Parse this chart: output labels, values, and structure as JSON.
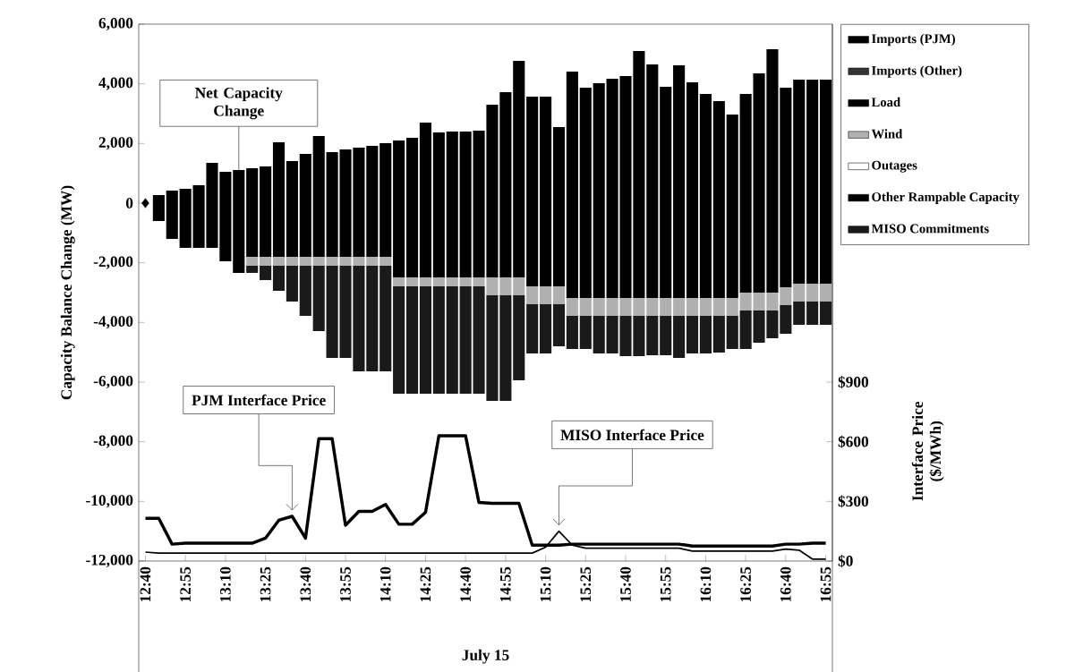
{
  "chart_data": {
    "type": "bar",
    "stacked": true,
    "ylabel": "Capacity Balance Change (MW)",
    "y2label": "Interface Price ($/MWh)",
    "xlabel": "July 15",
    "categories": [
      "12:40",
      null,
      null,
      "12:55",
      null,
      null,
      "13:10",
      null,
      null,
      "13:25",
      null,
      null,
      "13:40",
      null,
      null,
      "13:55",
      null,
      null,
      "14:10",
      null,
      null,
      "14:25",
      null,
      null,
      "14:40",
      null,
      null,
      "14:55",
      null,
      null,
      "15:10",
      null,
      null,
      "15:25",
      null,
      null,
      "15:40",
      null,
      null,
      "15:55",
      null,
      null,
      "16:10",
      null,
      null,
      "16:25",
      null,
      null,
      "16:40",
      null,
      null,
      "16:55"
    ],
    "ylim": [
      -12000,
      6000
    ],
    "yticks": [
      {
        "value": -12000,
        "label": "-12,000"
      },
      {
        "value": -10000,
        "label": "-10,000"
      },
      {
        "value": -8000,
        "label": "-8,000"
      },
      {
        "value": -6000,
        "label": "-6,000"
      },
      {
        "value": -4000,
        "label": "-4,000"
      },
      {
        "value": -2000,
        "label": "-2,000"
      },
      0,
      {
        "value": 2000,
        "label": "2,000"
      },
      {
        "value": 4000,
        "label": "4,000"
      },
      {
        "value": 6000,
        "label": "6,000"
      }
    ],
    "y2lim": [
      0,
      2700
    ],
    "y2ticks": [
      {
        "value": 0,
        "label": "$0"
      },
      {
        "value": 300,
        "label": "$300"
      },
      {
        "value": 600,
        "label": "$600"
      },
      {
        "value": 900,
        "label": "$900"
      }
    ],
    "legend": "right",
    "series": [
      {
        "name": "Imports (PJM)",
        "color": "#000000",
        "values": [
          null,
          270,
          420,
          480,
          600,
          1350,
          1050,
          1110,
          1170,
          1230,
          2040,
          1410,
          1650,
          2250,
          1710,
          1800,
          1860,
          1920,
          2010,
          2100,
          2190,
          2700,
          2370,
          2400,
          2400,
          2430,
          3300,
          3720,
          4770,
          3570,
          3570,
          2550,
          4410,
          3870,
          4020,
          4170,
          4260,
          5100,
          4650,
          3900,
          4620,
          4050,
          3660,
          3420,
          2970,
          3660,
          4350,
          5160,
          3870,
          4140,
          4140,
          4140
        ]
      },
      {
        "name": "Imports (Other)",
        "color": "#333333",
        "values": [
          null,
          null,
          null,
          null,
          null,
          null,
          null,
          null,
          null,
          null,
          null,
          null,
          null,
          null,
          null,
          null,
          null,
          null,
          null,
          null,
          null,
          null,
          null,
          null,
          null,
          null,
          null,
          null,
          null,
          null,
          null,
          null,
          null,
          null,
          null,
          null,
          null,
          null,
          null,
          null,
          null,
          null,
          null,
          null,
          null,
          null,
          null,
          null,
          null,
          null,
          null,
          null
        ]
      },
      {
        "name": "Load",
        "color": "#000000",
        "values": [
          null,
          -600,
          -1200,
          -1500,
          -1500,
          -1500,
          -1950,
          -2340,
          -1800,
          -1800,
          -1800,
          -1800,
          -1800,
          -1800,
          -1800,
          -1800,
          -1800,
          -1800,
          -1800,
          -2490,
          -2490,
          -2490,
          -2490,
          -2490,
          -2490,
          -2490,
          -2490,
          -2490,
          -2490,
          -2790,
          -2790,
          -2790,
          -3180,
          -3180,
          -3180,
          -3180,
          -3180,
          -3180,
          -3180,
          -3180,
          -3180,
          -3180,
          -3180,
          -3180,
          -3180,
          -3000,
          -3000,
          -3000,
          -2820,
          -2700,
          -2700,
          -2700
        ]
      },
      {
        "name": "Wind",
        "color": "#b0b0b0",
        "values": [
          null,
          null,
          null,
          null,
          null,
          null,
          null,
          null,
          -300,
          -300,
          -300,
          -300,
          -300,
          -300,
          -300,
          -300,
          -300,
          -300,
          -300,
          -300,
          -300,
          -300,
          -300,
          -300,
          -300,
          -300,
          -600,
          -600,
          -600,
          -600,
          -600,
          -600,
          -600,
          -600,
          -600,
          -600,
          -600,
          -600,
          -600,
          -600,
          -600,
          -600,
          -600,
          -600,
          -600,
          -600,
          -600,
          -600,
          -600,
          -600,
          -600,
          -600
        ]
      },
      {
        "name": "Outages",
        "color": "#ffffff",
        "values": [
          null,
          null,
          null,
          null,
          null,
          null,
          null,
          null,
          null,
          null,
          null,
          null,
          null,
          null,
          null,
          null,
          null,
          null,
          null,
          null,
          null,
          null,
          null,
          null,
          null,
          null,
          null,
          null,
          null,
          null,
          null,
          null,
          null,
          null,
          null,
          null,
          null,
          null,
          null,
          null,
          null,
          null,
          null,
          null,
          null,
          null,
          null,
          null,
          null,
          null,
          null,
          null
        ]
      },
      {
        "name": "Other Rampable Capacity",
        "color": "#000000",
        "values": [
          null,
          null,
          null,
          null,
          null,
          null,
          null,
          null,
          null,
          null,
          null,
          null,
          null,
          null,
          null,
          null,
          null,
          null,
          null,
          null,
          null,
          null,
          null,
          null,
          null,
          null,
          null,
          null,
          null,
          null,
          null,
          null,
          null,
          null,
          null,
          null,
          null,
          null,
          null,
          null,
          null,
          null,
          null,
          null,
          null,
          null,
          null,
          null,
          null,
          null,
          null,
          null
        ]
      },
      {
        "name": "MISO Commitments",
        "color": "#1a1a1a",
        "values": [
          null,
          null,
          null,
          null,
          null,
          null,
          null,
          null,
          -240,
          -480,
          -840,
          -1200,
          -1680,
          -2190,
          -3090,
          -3090,
          -3540,
          -3540,
          -3540,
          -3600,
          -3600,
          -3600,
          -3600,
          -3600,
          -3600,
          -3600,
          -3540,
          -3540,
          -2850,
          -1650,
          -1650,
          -1410,
          -1110,
          -1110,
          -1260,
          -1260,
          -1350,
          -1350,
          -1320,
          -1320,
          -1410,
          -1260,
          -1260,
          -1230,
          -1110,
          -1290,
          -1080,
          -930,
          -960,
          -780,
          -780,
          -780
        ]
      },
      {
        "name": "Net Capacity Change",
        "type": "line",
        "color": "#000000",
        "marker": "diamond",
        "values": [
          0,
          null,
          null,
          null,
          null,
          null,
          null,
          null,
          null,
          null,
          null,
          null,
          null,
          null,
          null,
          null,
          null,
          null,
          null,
          null,
          null,
          null,
          null,
          null,
          null,
          null,
          null,
          null,
          null,
          null,
          null,
          null,
          null,
          null,
          null,
          null,
          null,
          null,
          null,
          null,
          null,
          null,
          null,
          null,
          null,
          null,
          null,
          null,
          null,
          null,
          null,
          null
        ]
      },
      {
        "name": "PJM Interface  Price",
        "type": "line",
        "axis": "y2",
        "color": "#000000",
        "values": [
          215,
          215,
          85,
          90,
          90,
          90,
          90,
          90,
          90,
          115,
          205,
          225,
          115,
          615,
          615,
          180,
          250,
          250,
          285,
          185,
          185,
          245,
          630,
          630,
          630,
          295,
          290,
          290,
          290,
          80,
          80,
          80,
          85,
          85,
          85,
          85,
          85,
          85,
          85,
          85,
          85,
          75,
          75,
          75,
          75,
          75,
          75,
          75,
          85,
          85,
          90,
          90
        ]
      },
      {
        "name": "MISO Interface Price",
        "type": "line",
        "axis": "y2",
        "color": "#000000",
        "values": [
          45,
          40,
          40,
          40,
          40,
          40,
          40,
          40,
          40,
          40,
          40,
          40,
          40,
          40,
          40,
          40,
          40,
          40,
          40,
          40,
          40,
          40,
          40,
          40,
          40,
          40,
          40,
          40,
          40,
          40,
          70,
          150,
          80,
          65,
          65,
          65,
          65,
          65,
          65,
          65,
          65,
          50,
          50,
          50,
          50,
          50,
          50,
          50,
          60,
          55,
          10,
          10
        ]
      }
    ]
  }
}
